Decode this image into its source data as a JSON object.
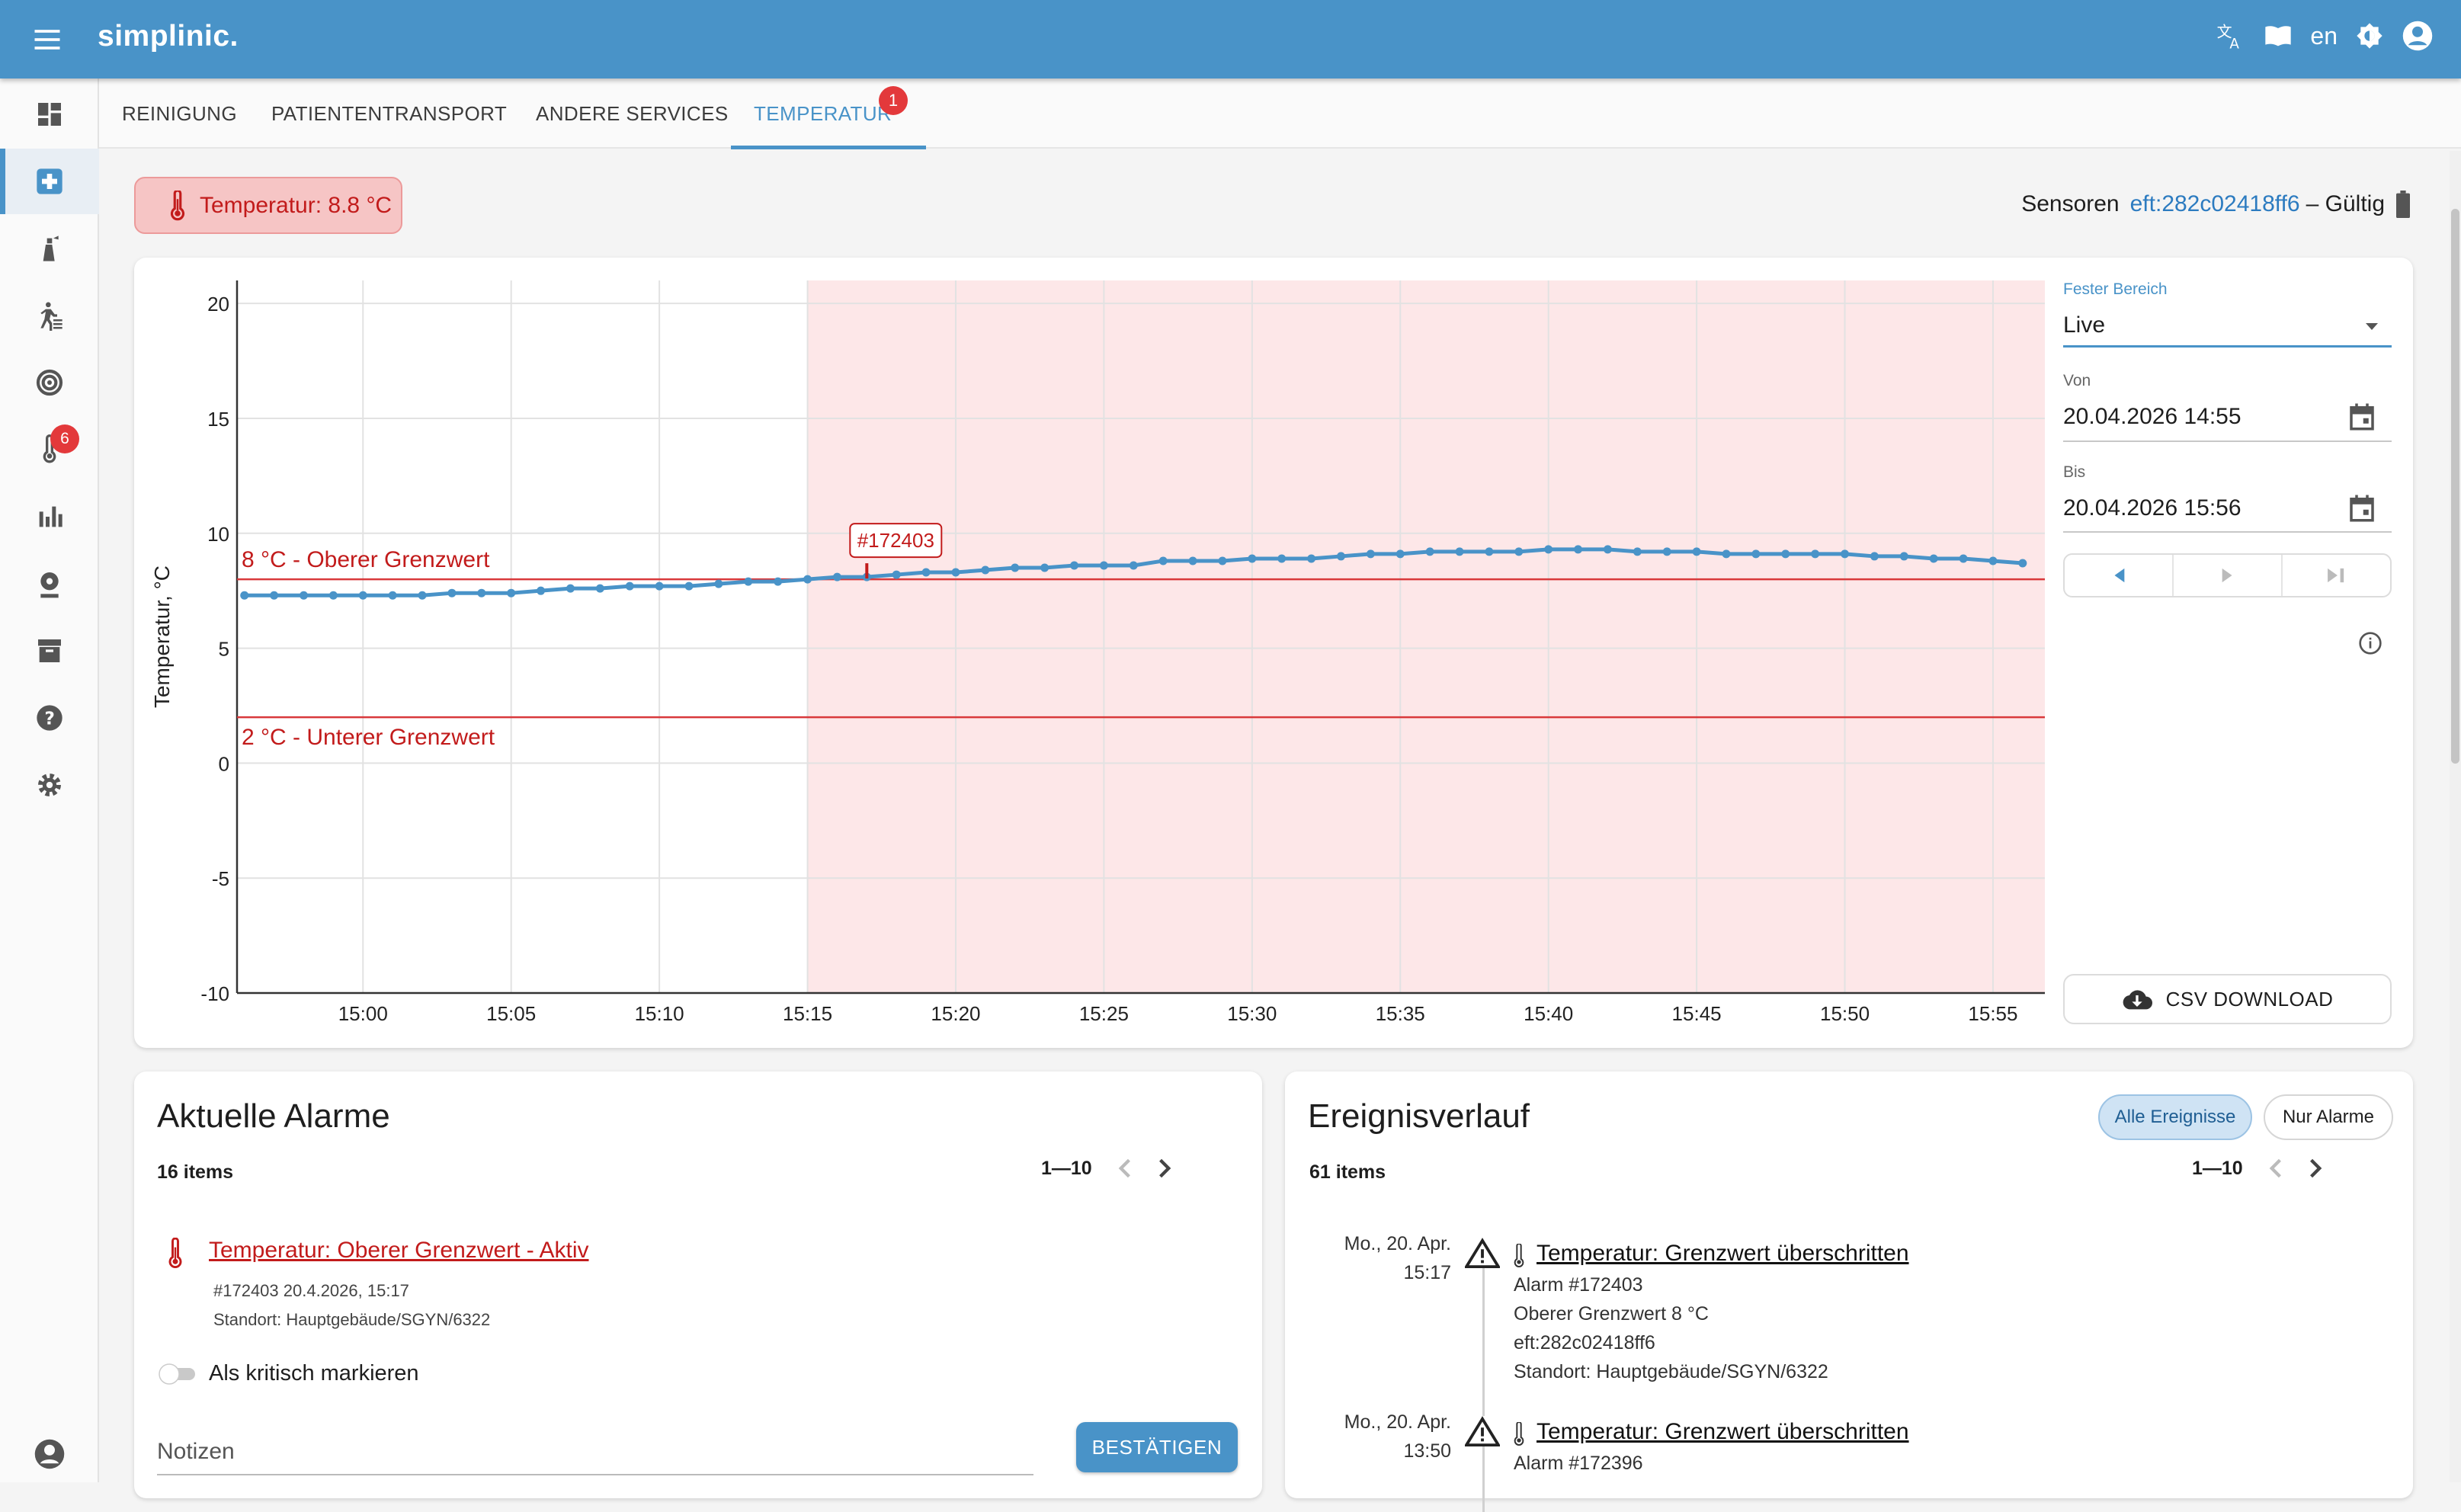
{
  "app": {
    "brand": "simplinic.",
    "language": "en"
  },
  "sidebar": {
    "badge_count": "6"
  },
  "tabs": [
    {
      "label": "REINIGUNG"
    },
    {
      "label": "PATIENTENTRANSPORT"
    },
    {
      "label": "ANDERE SERVICES"
    },
    {
      "label": "TEMPERATUR",
      "badge": "1"
    }
  ],
  "status": {
    "temperature_chip": "Temperatur: 8.8 °C",
    "sensors_label": "Sensoren",
    "sensor_id": "eft:282c02418ff6",
    "sensor_state": "– Gültig"
  },
  "controls": {
    "range_label": "Fester Bereich",
    "range_value": "Live",
    "from_label": "Von",
    "from_value": "20.04.2026 14:55",
    "to_label": "Bis",
    "to_value": "20.04.2026 15:56",
    "csv_label": "CSV DOWNLOAD"
  },
  "chart_data": {
    "type": "line",
    "ylabel": "Temperatur, °C",
    "ylim": [
      -10,
      21
    ],
    "yticks": [
      20,
      15,
      10,
      5,
      0,
      -5,
      -10
    ],
    "xticks": [
      "15:00",
      "15:05",
      "15:10",
      "15:15",
      "15:20",
      "15:25",
      "15:30",
      "15:35",
      "15:40",
      "15:45",
      "15:50",
      "15:55"
    ],
    "xlim_minutes": [
      "14:55:45",
      "15:56:45"
    ],
    "alarm_region": [
      "15:15",
      "15:56:45"
    ],
    "upper_limit": {
      "value": 8,
      "label": "8 °C - Oberer Grenzwert"
    },
    "lower_limit": {
      "value": 2,
      "label": "2 °C - Unterer Grenzwert"
    },
    "marker": {
      "x": "15:17",
      "y": 8.1,
      "label": "#172403"
    },
    "color": "#4993c8",
    "x": [
      "15:00",
      "15:01",
      "15:02",
      "15:03",
      "15:04",
      "15:05",
      "15:06",
      "15:07",
      "15:08",
      "15:09",
      "15:10",
      "15:11",
      "15:12",
      "15:13",
      "15:14",
      "15:15",
      "15:16",
      "15:17",
      "15:18",
      "15:19",
      "15:20",
      "15:21",
      "15:22",
      "15:23",
      "15:24",
      "15:25",
      "15:26",
      "15:27",
      "15:28",
      "15:29",
      "15:30",
      "15:31",
      "15:32",
      "15:33",
      "15:34",
      "15:35",
      "15:36",
      "15:37",
      "15:38",
      "15:39",
      "15:40",
      "15:41",
      "15:42",
      "15:43",
      "15:44",
      "15:45",
      "15:46",
      "15:47",
      "15:48",
      "15:49",
      "15:50",
      "15:51",
      "15:52",
      "15:53",
      "15:54",
      "15:55",
      "15:56"
    ],
    "prefix_x": [
      "14:56",
      "14:57",
      "14:58",
      "14:59"
    ],
    "prefix_values": [
      7.3,
      7.3,
      7.3,
      7.3
    ],
    "values": [
      7.3,
      7.3,
      7.3,
      7.4,
      7.4,
      7.4,
      7.5,
      7.6,
      7.6,
      7.7,
      7.7,
      7.7,
      7.8,
      7.9,
      7.9,
      8.0,
      8.1,
      8.1,
      8.2,
      8.3,
      8.3,
      8.4,
      8.5,
      8.5,
      8.6,
      8.6,
      8.6,
      8.8,
      8.8,
      8.8,
      8.9,
      8.9,
      8.9,
      9.0,
      9.1,
      9.1,
      9.2,
      9.2,
      9.2,
      9.2,
      9.3,
      9.3,
      9.3,
      9.2,
      9.2,
      9.2,
      9.1,
      9.1,
      9.1,
      9.1,
      9.1,
      9.0,
      9.0,
      8.9,
      8.9,
      8.8,
      8.7
    ]
  },
  "alarms": {
    "title": "Aktuelle Alarme",
    "count": "16 items",
    "range": "1—10",
    "item": {
      "title": "Temperatur: Oberer Grenzwert - Aktiv",
      "meta": "#172403 20.4.2026, 15:17",
      "location": "Standort: Hauptgebäude/SGYN/6322"
    },
    "critical_label": "Als kritisch markieren",
    "notes_placeholder": "Notizen",
    "confirm_label": "BESTÄTIGEN"
  },
  "events": {
    "title": "Ereignisverlauf",
    "filter_all": "Alle Ereignisse",
    "filter_alarms": "Nur Alarme",
    "count": "61 items",
    "range": "1—10",
    "entries": [
      {
        "date": "Mo., 20. Apr.",
        "time": "15:17",
        "title": "Temperatur: Grenzwert überschritten",
        "alarm": "Alarm #172403",
        "detail": "Oberer Grenzwert 8 °C",
        "sensor": "eft:282c02418ff6",
        "location": "Standort: Hauptgebäude/SGYN/6322"
      },
      {
        "date": "Mo., 20. Apr.",
        "time": "13:50",
        "title": "Temperatur: Grenzwert überschritten",
        "alarm": "Alarm #172396"
      }
    ]
  }
}
